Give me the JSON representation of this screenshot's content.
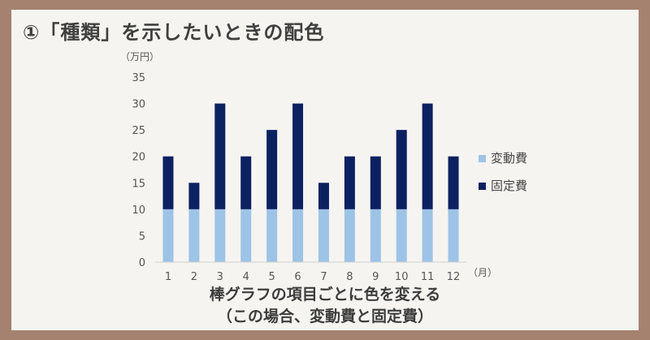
{
  "title": "①「種類」を示したいときの配色",
  "caption_line1": "棒グラフの項目ごとに色を変える",
  "caption_line2": "（この場合、変動費と固定費）",
  "colors": {
    "variable": "#9dc3e6",
    "fixed": "#0c2160",
    "frame": "#a5826f"
  },
  "chart_data": {
    "type": "bar",
    "stacked": true,
    "categories": [
      "1",
      "2",
      "3",
      "4",
      "5",
      "6",
      "7",
      "8",
      "9",
      "10",
      "11",
      "12"
    ],
    "series": [
      {
        "name": "変動費",
        "values": [
          10,
          10,
          10,
          10,
          10,
          10,
          10,
          10,
          10,
          10,
          10,
          10
        ]
      },
      {
        "name": "固定費",
        "values": [
          10,
          5,
          20,
          10,
          15,
          20,
          5,
          10,
          10,
          15,
          20,
          10
        ]
      }
    ],
    "yunit": "（万円）",
    "xunit": "（月）",
    "ylim": [
      0,
      35
    ],
    "yticks": [
      0,
      5,
      10,
      15,
      20,
      25,
      30,
      35
    ],
    "grid": false,
    "legend_position": "right"
  }
}
